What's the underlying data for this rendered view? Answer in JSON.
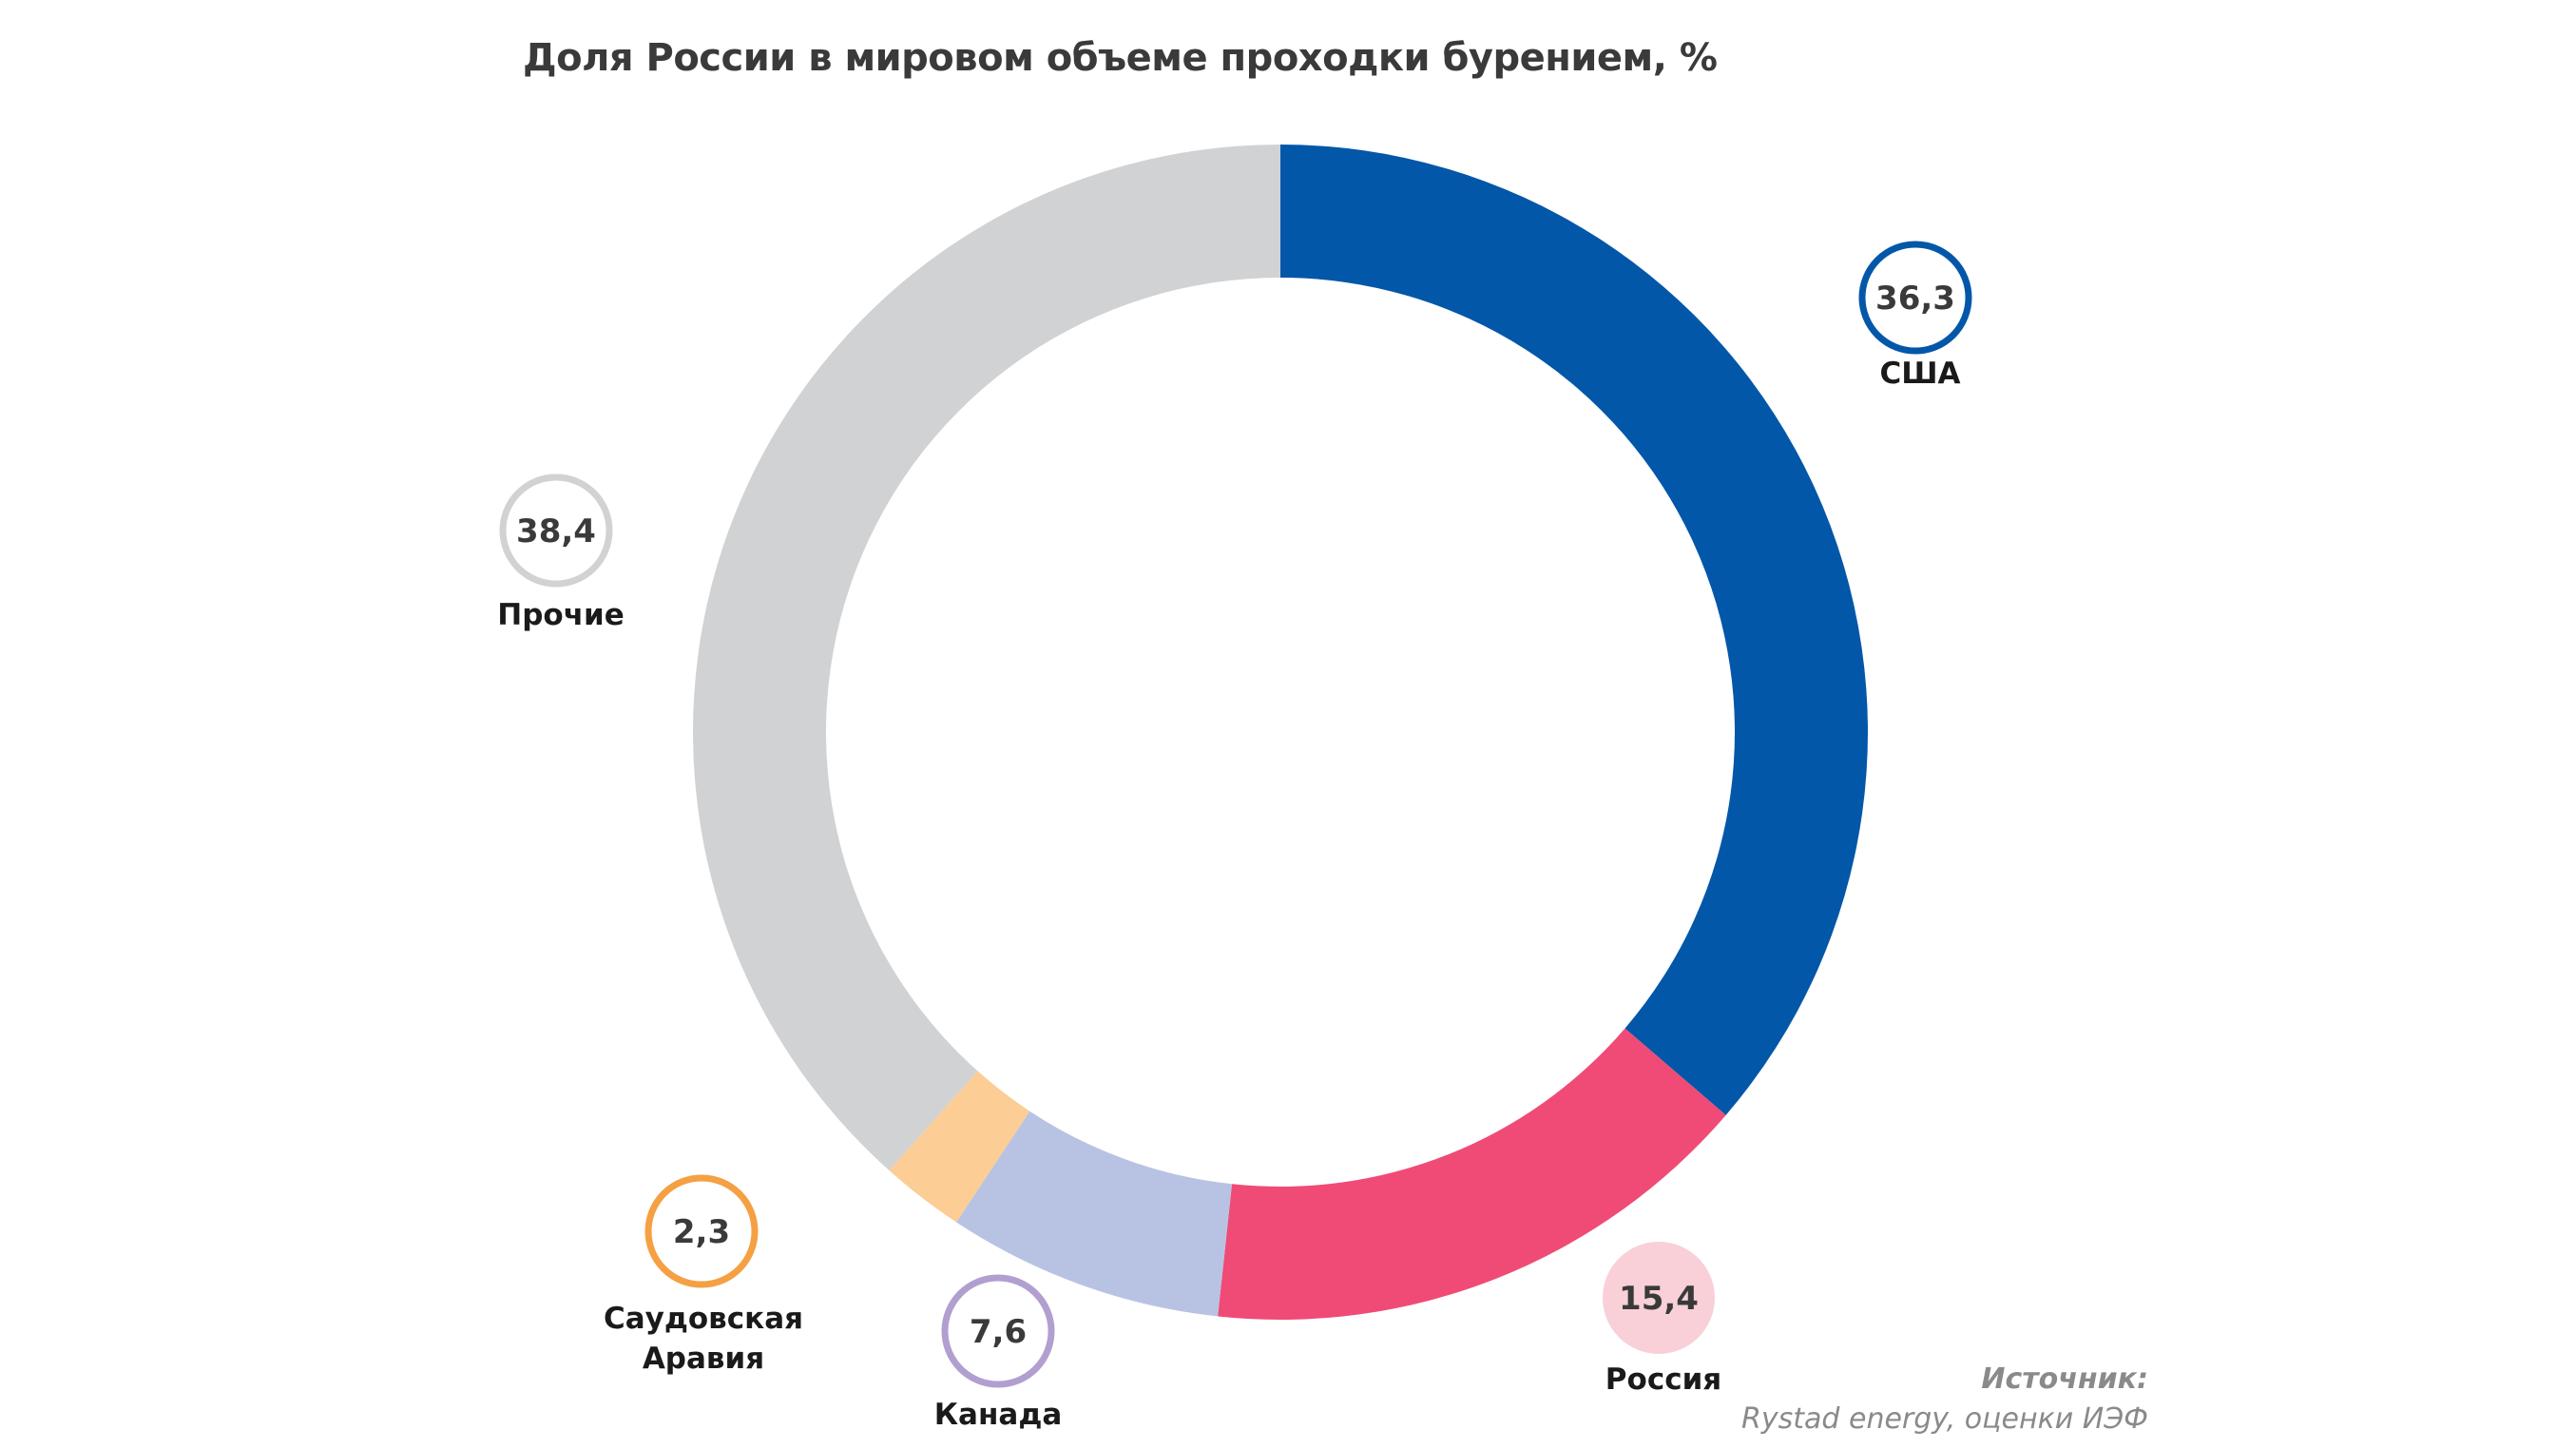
{
  "chart_data": {
    "type": "pie",
    "title": "Доля России в мировом объеме проходки бурением, %",
    "slices": [
      {
        "label": "США",
        "value": 36.3,
        "display": "36,3",
        "color": "#0357a9",
        "badge_style": "ring",
        "badge_color": "#0357a9"
      },
      {
        "label": "Россия",
        "value": 15.4,
        "display": "15,4",
        "color": "#ef4b76",
        "badge_style": "filled",
        "badge_color": "#f9d0d7"
      },
      {
        "label": "Канада",
        "value": 7.6,
        "display": "7,6",
        "color": "#b8c3e4",
        "badge_style": "ring",
        "badge_color": "#b19fd0"
      },
      {
        "label": "Саудовская Аравия",
        "label_lines": [
          "Саудовская",
          "Аравия"
        ],
        "value": 2.3,
        "display": "2,3",
        "color": "#fccd94",
        "badge_style": "ring",
        "badge_color": "#f4a043"
      },
      {
        "label": "Прочие",
        "value": 38.4,
        "display": "38,4",
        "color": "#d1d2d4",
        "badge_style": "ring",
        "badge_color": "#d1d2d4"
      }
    ]
  },
  "source": {
    "label": "Источник:",
    "text": "Rystad energy, оценки ИЭФ"
  }
}
